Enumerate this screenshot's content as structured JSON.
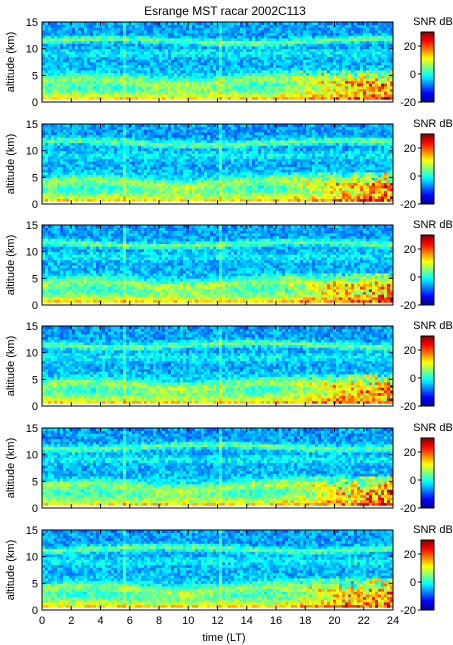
{
  "chart_data": {
    "type": "heatmap",
    "title": "Esrange MST racar 2002C113",
    "xlabel": "time (LT)",
    "ylabel": "altitude (km)",
    "xlim": [
      0,
      24
    ],
    "ylim": [
      0,
      15
    ],
    "x_ticks": [
      "0",
      "2",
      "4",
      "6",
      "8",
      "10",
      "12",
      "14",
      "16",
      "18",
      "20",
      "22",
      "24"
    ],
    "y_ticks": [
      "0",
      "5",
      "10",
      "15"
    ],
    "colorbar": {
      "label": "SNR dB",
      "range": [
        -20,
        30
      ],
      "ticks": [
        "20",
        "0",
        "-20"
      ]
    },
    "panel_count": 6,
    "colormap": [
      "#00008f",
      "#0000ff",
      "#0080ff",
      "#00ffff",
      "#80ff80",
      "#ffff00",
      "#ff8000",
      "#ff0000",
      "#800000"
    ]
  }
}
